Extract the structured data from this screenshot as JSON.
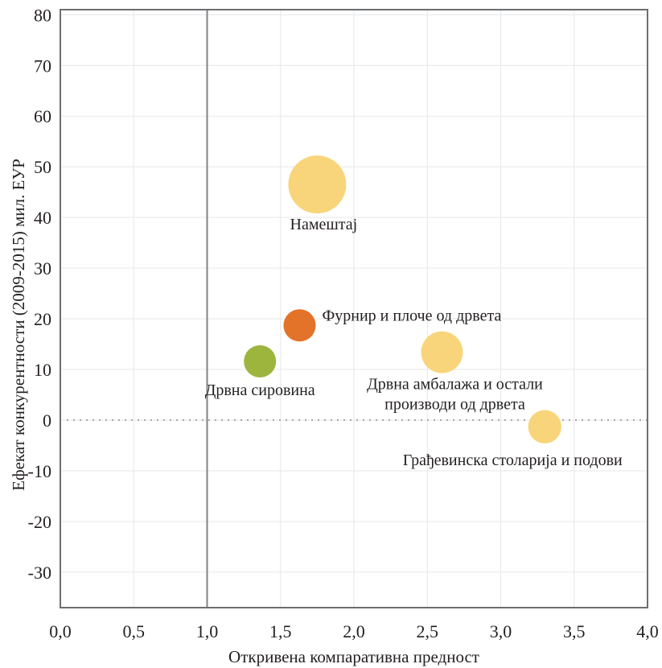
{
  "chart_data": {
    "type": "scatter",
    "subtype": "bubble",
    "title": "",
    "xlabel": "Откривена компаративна предност",
    "ylabel": "Ефекат конкурентности (2009-2015) мил. ЕУР",
    "xlim": [
      0,
      4
    ],
    "ylim": [
      -37,
      81
    ],
    "x_ticks": [
      "0,0",
      "0,5",
      "1,0",
      "1,5",
      "2,0",
      "2,5",
      "3,0",
      "3,5",
      "4,0"
    ],
    "y_ticks": [
      "80",
      "70",
      "60",
      "50",
      "40",
      "30",
      "20",
      "10",
      "0",
      "-10",
      "-20",
      "-30"
    ],
    "grid": true,
    "reference_lines": {
      "x": 1.0,
      "y": 0
    },
    "points": [
      {
        "label": "Намештај",
        "x": 1.75,
        "y": 46.5,
        "size": 1.0,
        "color": "#f8d57a"
      },
      {
        "label": "Фурнир и плоче од дрвета",
        "x": 1.63,
        "y": 18.7,
        "size": 0.31,
        "color": "#e4732a"
      },
      {
        "label": "Дрвна сировина",
        "x": 1.36,
        "y": 11.6,
        "size": 0.31,
        "color": "#9db53d"
      },
      {
        "label": "Дрвна амбалажа и остали производи од дрвета",
        "x": 2.6,
        "y": 13.4,
        "size": 0.52,
        "color": "#f8d57a"
      },
      {
        "label": "Грађевинска столарија и подови",
        "x": 3.3,
        "y": -1.3,
        "size": 0.33,
        "color": "#f8d57a"
      }
    ]
  }
}
